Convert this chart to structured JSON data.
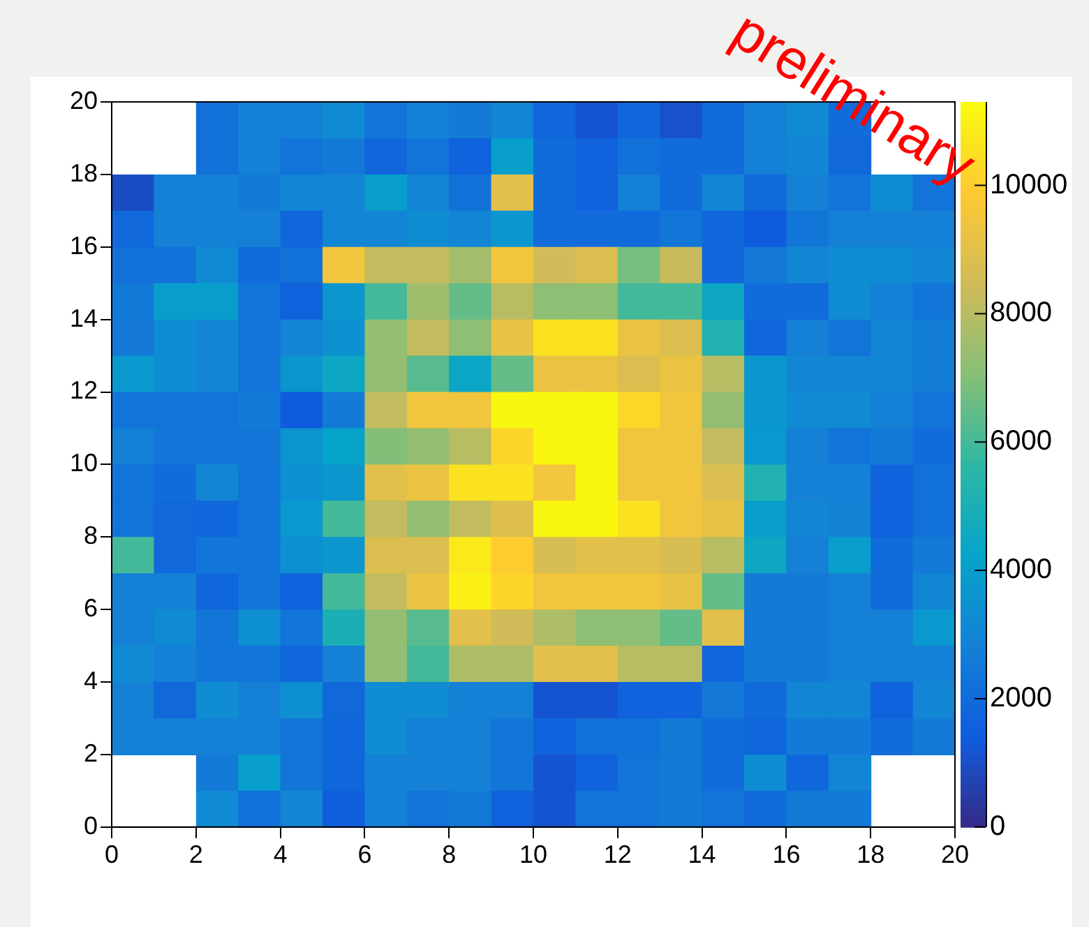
{
  "chart_data": {
    "type": "heatmap",
    "xlim": [
      0,
      20
    ],
    "xticks": [
      0,
      2,
      4,
      6,
      8,
      10,
      12,
      14,
      16,
      18,
      20
    ],
    "ylim": [
      0,
      20
    ],
    "yticks": [
      0,
      2,
      4,
      6,
      8,
      10,
      12,
      14,
      16,
      18,
      20
    ],
    "clim": [
      0,
      11300
    ],
    "cticks": [
      0,
      2000,
      4000,
      6000,
      8000,
      10000
    ],
    "annotations": [
      "preliminary"
    ],
    "cells": [
      [
        null,
        null,
        2200,
        2800,
        2800,
        3200,
        2300,
        2800,
        2600,
        3000,
        1800,
        1200,
        1800,
        1100,
        2000,
        2800,
        3200,
        2000,
        null,
        null
      ],
      [
        null,
        null,
        2200,
        2800,
        2300,
        2600,
        1800,
        2300,
        1700,
        4000,
        2000,
        1600,
        2200,
        2000,
        2000,
        2800,
        3000,
        1900,
        null,
        null
      ],
      [
        1000,
        2800,
        2800,
        2600,
        3000,
        3000,
        4000,
        3000,
        2200,
        9000,
        2000,
        1600,
        2800,
        2000,
        3000,
        2000,
        2800,
        2300,
        3300,
        2300
      ],
      [
        1900,
        2800,
        2800,
        2800,
        1800,
        3000,
        3000,
        3300,
        3000,
        3700,
        2000,
        2000,
        2000,
        2400,
        1800,
        1400,
        2400,
        2800,
        2800,
        2800
      ],
      [
        2200,
        2200,
        3200,
        2000,
        2200,
        9500,
        8200,
        8200,
        7600,
        9500,
        8500,
        8800,
        6800,
        8300,
        1800,
        2500,
        3000,
        3300,
        3300,
        3000
      ],
      [
        2600,
        4000,
        4000,
        2300,
        1600,
        3700,
        6000,
        7500,
        6500,
        8000,
        7200,
        7200,
        6000,
        6000,
        4500,
        2000,
        2000,
        3300,
        2800,
        2400
      ],
      [
        2500,
        3300,
        3000,
        2300,
        3000,
        3500,
        7300,
        8200,
        7200,
        9200,
        10600,
        10600,
        9300,
        8800,
        5200,
        1800,
        2800,
        2300,
        3000,
        2700
      ],
      [
        3800,
        3300,
        3000,
        2300,
        3600,
        4500,
        7300,
        6300,
        4400,
        6500,
        9300,
        9300,
        8800,
        9300,
        8000,
        3700,
        3000,
        3000,
        3000,
        2700
      ],
      [
        2300,
        2300,
        2300,
        2600,
        1400,
        2600,
        8200,
        9500,
        9500,
        11200,
        11200,
        11200,
        10300,
        9500,
        7300,
        3700,
        3200,
        3200,
        2800,
        2300
      ],
      [
        2800,
        2400,
        2400,
        2400,
        3600,
        4200,
        7000,
        7300,
        8000,
        10200,
        11200,
        11200,
        9500,
        9500,
        8200,
        3800,
        2800,
        2300,
        2600,
        2000
      ],
      [
        2300,
        2000,
        3000,
        2300,
        3400,
        3700,
        9000,
        9300,
        10600,
        10600,
        9500,
        11200,
        9500,
        9500,
        8800,
        5200,
        2800,
        2800,
        1700,
        2200
      ],
      [
        2300,
        1900,
        1800,
        2300,
        3800,
        6000,
        8200,
        7300,
        8200,
        8900,
        11200,
        11200,
        10600,
        9500,
        9200,
        4000,
        3000,
        2900,
        1600,
        2200
      ],
      [
        6000,
        1900,
        2400,
        2400,
        3400,
        3700,
        8800,
        8800,
        10800,
        10000,
        8700,
        9000,
        9000,
        8700,
        8000,
        4500,
        2800,
        4000,
        2000,
        2600
      ],
      [
        2800,
        2800,
        1800,
        2400,
        1700,
        6000,
        8200,
        9300,
        11000,
        10200,
        9500,
        9500,
        9500,
        9200,
        6500,
        2600,
        2600,
        2800,
        2000,
        3000
      ],
      [
        2800,
        3200,
        2400,
        3400,
        2300,
        5000,
        7300,
        6300,
        9000,
        8500,
        7800,
        7200,
        7200,
        6500,
        9000,
        2600,
        2600,
        2800,
        2800,
        3800
      ],
      [
        3200,
        2800,
        2400,
        2400,
        1800,
        2800,
        7300,
        6000,
        7800,
        7800,
        9000,
        9000,
        8000,
        8000,
        1800,
        2600,
        2600,
        2800,
        2800,
        2800
      ],
      [
        2800,
        1900,
        3300,
        2800,
        3400,
        1900,
        3300,
        3300,
        2800,
        2800,
        1200,
        1200,
        1700,
        1700,
        2500,
        2000,
        3000,
        3000,
        1600,
        3000
      ],
      [
        2800,
        2800,
        2800,
        2800,
        2400,
        1800,
        3300,
        2800,
        2800,
        2400,
        1700,
        2200,
        2200,
        2600,
        2000,
        1800,
        2600,
        2600,
        2000,
        2600
      ],
      [
        null,
        null,
        2600,
        4000,
        2400,
        1800,
        2800,
        2800,
        2800,
        2400,
        1200,
        1600,
        2300,
        2600,
        2000,
        3300,
        1800,
        3000,
        null,
        null
      ],
      [
        null,
        null,
        3200,
        2200,
        3000,
        1500,
        2800,
        2300,
        2600,
        1600,
        1200,
        2300,
        2300,
        2600,
        2300,
        2000,
        2600,
        2600,
        null,
        null
      ]
    ]
  }
}
